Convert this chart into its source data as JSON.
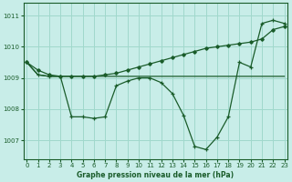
{
  "xlabel": "Graphe pression niveau de la mer (hPa)",
  "ylim": [
    1006.4,
    1011.4
  ],
  "xlim": [
    -0.3,
    23.3
  ],
  "yticks": [
    1007,
    1008,
    1009,
    1010,
    1011
  ],
  "xticks": [
    0,
    1,
    2,
    3,
    4,
    5,
    6,
    7,
    8,
    9,
    10,
    11,
    12,
    13,
    14,
    15,
    16,
    17,
    18,
    19,
    20,
    21,
    22,
    23
  ],
  "bg_color": "#c8ede8",
  "grid_color": "#a0d8cc",
  "line_color": "#1a5c2a",
  "line1_x": [
    0,
    1,
    2,
    3,
    4,
    5,
    6,
    7,
    8,
    9,
    10,
    11,
    12,
    13,
    14,
    15,
    16,
    17,
    18,
    19,
    20,
    21,
    22,
    23
  ],
  "line1_y": [
    1009.5,
    1009.25,
    1009.1,
    1009.05,
    1009.05,
    1009.05,
    1009.05,
    1009.1,
    1009.15,
    1009.25,
    1009.35,
    1009.45,
    1009.55,
    1009.65,
    1009.75,
    1009.85,
    1009.95,
    1010.0,
    1010.05,
    1010.1,
    1010.15,
    1010.25,
    1010.55,
    1010.65
  ],
  "line2_x": [
    0,
    1,
    2,
    3,
    4,
    5,
    6,
    7,
    8,
    9,
    10,
    11,
    12,
    13,
    14,
    15,
    16,
    17,
    18,
    19,
    20,
    21,
    22,
    23
  ],
  "line2_y": [
    1009.5,
    1009.1,
    1009.05,
    1009.05,
    1007.75,
    1007.75,
    1007.7,
    1007.75,
    1008.75,
    1008.9,
    1009.0,
    1009.0,
    1008.85,
    1008.5,
    1007.8,
    1006.8,
    1006.7,
    1007.1,
    1007.75,
    1009.5,
    1009.35,
    1010.75,
    1010.85,
    1010.75
  ],
  "line3_x": [
    0,
    1,
    2,
    3,
    4,
    5,
    6,
    7,
    8,
    9,
    10,
    11,
    12,
    13,
    14,
    15,
    16,
    17,
    18,
    19,
    20,
    21,
    22,
    23
  ],
  "line3_y": [
    1009.5,
    1009.1,
    1009.05,
    1009.05,
    1009.05,
    1009.05,
    1009.05,
    1009.05,
    1009.05,
    1009.05,
    1009.05,
    1009.05,
    1009.05,
    1009.05,
    1009.05,
    1009.05,
    1009.05,
    1009.05,
    1009.05,
    1009.05,
    1009.05,
    1009.05,
    1009.05,
    1009.05
  ]
}
